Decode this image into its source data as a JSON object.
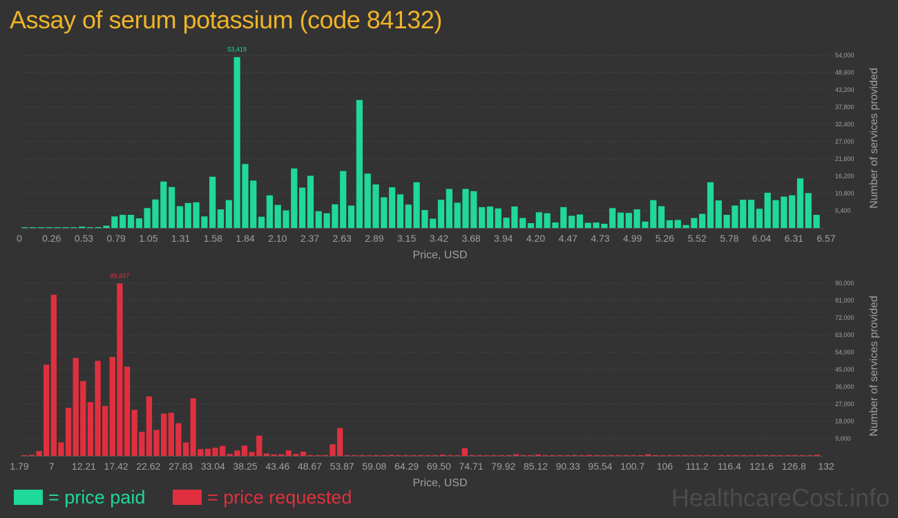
{
  "page_title": "Assay of serum potassium (code 84132)",
  "watermark": "HealthcareCost.info",
  "legend": [
    {
      "label": "= price paid",
      "color": "#1fd89a"
    },
    {
      "label": "= price requested",
      "color": "#e0303f"
    }
  ],
  "colors": {
    "background": "#333333",
    "title": "#f0b429",
    "axis_text": "#a0a0a0",
    "grid": "#4a4a4a"
  },
  "chart_data": [
    {
      "type": "bar",
      "color": "#1fd89a",
      "xlabel": "Price, USD",
      "ylabel": "Number of services provided",
      "ylim": [
        0,
        54000
      ],
      "yticks": [
        5400,
        10800,
        16200,
        21600,
        27000,
        32400,
        37800,
        43200,
        48600,
        54000
      ],
      "ytick_labels": [
        "5,400",
        "10,800",
        "16,200",
        "21,600",
        "27,000",
        "32,400",
        "37,800",
        "43,200",
        "48,600",
        "54,000"
      ],
      "xtick_labels": [
        "0",
        "0.26",
        "0.53",
        "0.79",
        "1.05",
        "1.31",
        "1.58",
        "1.84",
        "2.10",
        "2.37",
        "2.63",
        "2.89",
        "3.15",
        "3.42",
        "3.68",
        "3.94",
        "4.20",
        "4.47",
        "4.73",
        "4.99",
        "5.26",
        "5.52",
        "5.78",
        "6.04",
        "6.31",
        "6.57"
      ],
      "x_min": 0,
      "x_max": 6.57,
      "peak_label": "53,419",
      "values": [
        50,
        50,
        80,
        120,
        150,
        200,
        100,
        400,
        200,
        250,
        700,
        3600,
        4100,
        4100,
        3000,
        6200,
        8900,
        14500,
        12800,
        6800,
        7800,
        8000,
        3600,
        16000,
        5800,
        8700,
        53419,
        20000,
        14800,
        3500,
        10200,
        7200,
        5500,
        18600,
        12600,
        16300,
        5200,
        4600,
        7400,
        17800,
        7000,
        40000,
        17000,
        13600,
        9600,
        12700,
        10500,
        7300,
        14300,
        5600,
        2900,
        8800,
        12200,
        7900,
        12200,
        11500,
        6500,
        6700,
        6100,
        3200,
        6700,
        3100,
        1500,
        4900,
        4600,
        1700,
        6500,
        3800,
        4200,
        1600,
        1700,
        1300,
        6200,
        4800,
        4700,
        5800,
        2000,
        8700,
        6800,
        2400,
        2500,
        900,
        3100,
        4400,
        14300,
        8600,
        4100,
        7000,
        8800,
        8800,
        6000,
        11000,
        8700,
        9800,
        10200,
        15500,
        10900,
        4100
      ]
    },
    {
      "type": "bar",
      "color": "#e0303f",
      "xlabel": "Price, USD",
      "ylabel": "Number of services provided",
      "ylim": [
        0,
        90000
      ],
      "yticks": [
        9000,
        18000,
        27000,
        36000,
        45000,
        54000,
        63000,
        72000,
        81000,
        90000
      ],
      "ytick_labels": [
        "9,000",
        "18,000",
        "27,000",
        "36,000",
        "45,000",
        "54,000",
        "63,000",
        "72,000",
        "81,000",
        "90,000"
      ],
      "xtick_labels": [
        "1.79",
        "7",
        "12.21",
        "17.42",
        "22.62",
        "27.83",
        "33.04",
        "38.25",
        "43.46",
        "48.67",
        "53.87",
        "59.08",
        "64.29",
        "69.50",
        "74.71",
        "79.92",
        "85.12",
        "90.33",
        "95.54",
        "100.7",
        "106",
        "111.2",
        "116.4",
        "121.6",
        "126.8",
        "132"
      ],
      "x_min": 1.79,
      "x_max": 132,
      "peak_label": "89,837",
      "values": [
        300,
        500,
        2500,
        47500,
        84000,
        7000,
        25000,
        51000,
        39000,
        28000,
        49500,
        26000,
        51500,
        89837,
        46500,
        24000,
        12500,
        31000,
        13500,
        22000,
        22500,
        17000,
        7000,
        30000,
        3500,
        3700,
        4200,
        5200,
        1000,
        2800,
        5300,
        2000,
        10500,
        1200,
        700,
        800,
        2800,
        1000,
        2200,
        400,
        300,
        400,
        6000,
        14500,
        200,
        300,
        50,
        300,
        100,
        150,
        500,
        100,
        200,
        300,
        100,
        200,
        150,
        600,
        200,
        150,
        4000,
        100,
        150,
        200,
        100,
        300,
        100,
        800,
        200,
        100,
        700,
        100,
        150,
        100,
        200,
        400,
        150,
        500,
        200,
        100,
        150,
        100,
        150,
        300,
        100,
        800,
        100,
        100,
        150,
        100,
        200,
        300,
        100,
        150,
        100,
        200,
        100,
        150,
        150,
        100,
        200,
        400,
        100,
        150,
        100,
        100,
        100,
        200,
        600
      ]
    }
  ]
}
